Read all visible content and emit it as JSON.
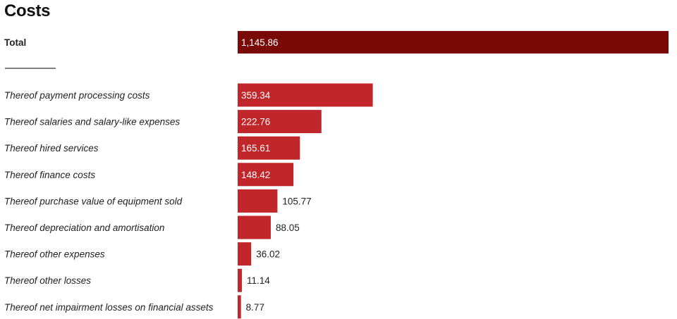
{
  "chart_data": {
    "type": "bar",
    "orientation": "horizontal",
    "title": "Costs",
    "total": {
      "label": "Total",
      "value": 1145.86,
      "value_label": "1,145.86"
    },
    "categories": [
      "Thereof payment processing costs",
      "Thereof salaries and salary-like expenses",
      "Thereof hired services",
      "Thereof finance costs",
      "Thereof purchase value of equipment sold",
      "Thereof depreciation and amortisation",
      "Thereof other expenses",
      "Thereof other losses",
      "Thereof net impairment losses on financial assets"
    ],
    "values": [
      359.34,
      222.76,
      165.61,
      148.42,
      105.77,
      88.05,
      36.02,
      11.14,
      8.77
    ],
    "value_labels": [
      "359.34",
      "222.76",
      "165.61",
      "148.42",
      "105.77",
      "88.05",
      "36.02",
      "11.14",
      "8.77"
    ],
    "xlim": [
      0,
      1145.86
    ],
    "grid": false,
    "legend": "none",
    "colors": {
      "total": "#7a0a08",
      "bars": "#c0262a",
      "inside_label": "#ffffff",
      "outside_label": "#222222",
      "separator": "#333333"
    }
  }
}
